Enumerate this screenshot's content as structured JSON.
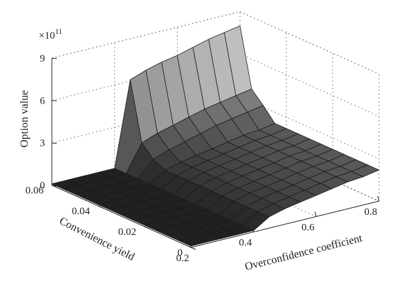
{
  "chart_data": {
    "type": "surface",
    "zlabel": "Option value",
    "xlabel": "Overconfidence coefficient",
    "ylabel": "Convenience yield",
    "z_multiplier": "×10",
    "z_exponent": "11",
    "x_ticks": [
      "0.2",
      "0.4",
      "0.6",
      "0.8"
    ],
    "y_ticks": [
      "0",
      "0.02",
      "0.04",
      "0.06"
    ],
    "z_ticks": [
      "0",
      "3",
      "6",
      "9"
    ],
    "xlim": [
      0.2,
      0.8
    ],
    "ylim": [
      0,
      0.06
    ],
    "zlim": [
      0,
      9
    ],
    "grid": true,
    "x": [
      0.2,
      0.25,
      0.3,
      0.35,
      0.4,
      0.45,
      0.5,
      0.55,
      0.6,
      0.65,
      0.7,
      0.75,
      0.8
    ],
    "y": [
      0,
      0.005,
      0.01,
      0.015,
      0.02,
      0.025,
      0.03,
      0.035,
      0.04,
      0.045,
      0.05,
      0.055,
      0.06
    ],
    "z_note": "values in units of 1e11",
    "z": [
      [
        0.1,
        0.1,
        0.1,
        0.1,
        0.1,
        0.8,
        1.1,
        1.3,
        1.5,
        1.7,
        1.9,
        2.0,
        2.2
      ],
      [
        0.1,
        0.1,
        0.1,
        0.1,
        0.1,
        0.8,
        1.1,
        1.3,
        1.5,
        1.7,
        1.9,
        2.0,
        2.2
      ],
      [
        0.1,
        0.1,
        0.1,
        0.1,
        0.1,
        0.8,
        1.1,
        1.3,
        1.5,
        1.7,
        1.9,
        2.0,
        2.2
      ],
      [
        0.1,
        0.1,
        0.1,
        0.1,
        0.1,
        0.8,
        1.1,
        1.3,
        1.5,
        1.7,
        1.9,
        2.0,
        2.2
      ],
      [
        0.1,
        0.1,
        0.1,
        0.1,
        0.1,
        0.8,
        1.1,
        1.3,
        1.5,
        1.7,
        1.9,
        2.0,
        2.2
      ],
      [
        0.1,
        0.1,
        0.1,
        0.1,
        0.1,
        0.8,
        1.1,
        1.3,
        1.5,
        1.7,
        1.9,
        2.0,
        2.2
      ],
      [
        0.1,
        0.1,
        0.1,
        0.1,
        0.1,
        0.8,
        1.1,
        1.3,
        1.5,
        1.7,
        1.9,
        2.0,
        2.2
      ],
      [
        0.1,
        0.1,
        0.1,
        0.1,
        0.1,
        0.8,
        1.1,
        1.3,
        1.5,
        1.7,
        1.9,
        2.0,
        2.2
      ],
      [
        0.1,
        0.1,
        0.1,
        0.1,
        0.1,
        0.8,
        1.1,
        1.3,
        1.5,
        1.7,
        1.9,
        2.0,
        2.2
      ],
      [
        0.1,
        0.1,
        0.1,
        0.1,
        0.1,
        0.8,
        1.1,
        1.3,
        1.5,
        1.7,
        1.9,
        2.0,
        2.2
      ],
      [
        0.1,
        0.1,
        0.1,
        0.1,
        0.1,
        1.2,
        1.6,
        1.9,
        2.2,
        2.5,
        2.7,
        2.9,
        3.1
      ],
      [
        0.1,
        0.1,
        0.1,
        0.1,
        0.1,
        2.0,
        2.4,
        2.7,
        3.0,
        3.3,
        3.5,
        3.7,
        3.9
      ],
      [
        0.1,
        0.1,
        0.1,
        0.1,
        0.1,
        6.1,
        6.5,
        6.8,
        7.0,
        7.3,
        7.6,
        7.8,
        8.0
      ]
    ]
  }
}
